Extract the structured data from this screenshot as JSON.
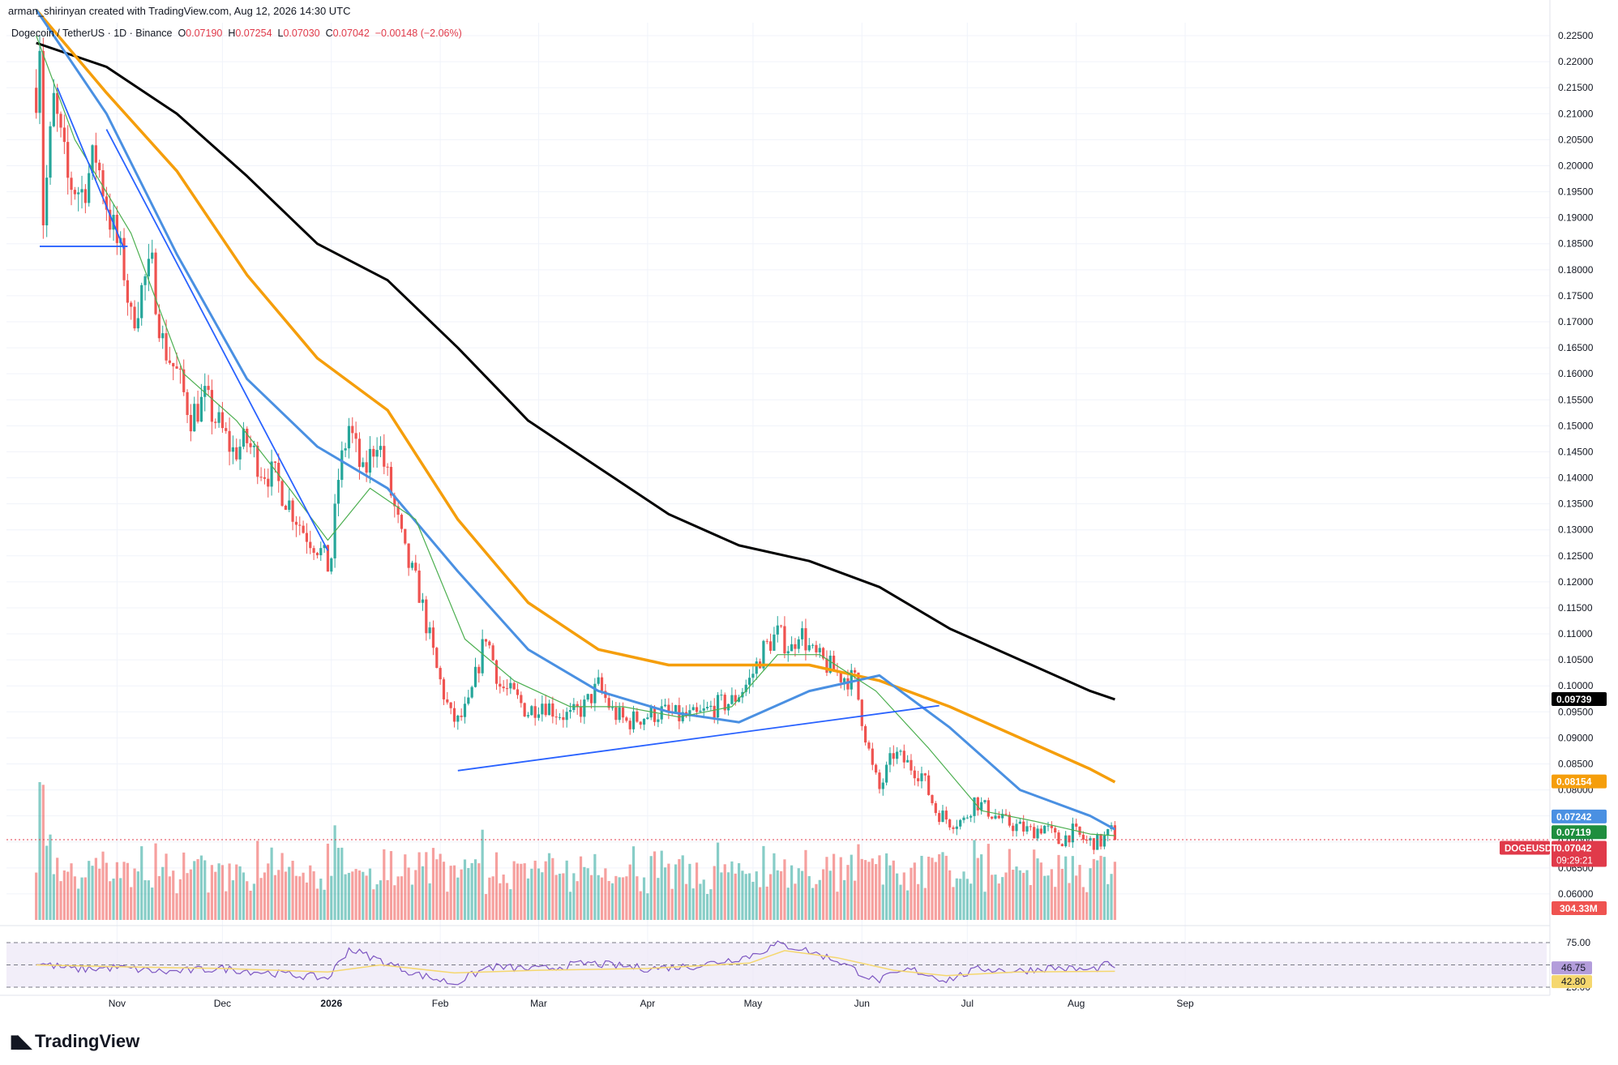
{
  "header": {
    "published": "arman_shirinyan created with TradingView.com, Aug 12, 2026 14:30 UTC",
    "symbol": "Dogecoin / TetherUS · 1D · Binance",
    "ohlc": {
      "o_label": "O",
      "o": "0.07190",
      "h_label": "H",
      "h": "0.07254",
      "l_label": "L",
      "l": "0.07030",
      "c_label": "C",
      "c": "0.07042",
      "change": "−0.00148 (−2.06%)"
    }
  },
  "brand": {
    "name": "TradingView"
  },
  "colors": {
    "up": "#26a69a",
    "down": "#ef5350",
    "ma_fast": "#4caf50",
    "ma_mid": "#4a90e2",
    "ma_slow": "#f59e0b",
    "ma_long": "#000000",
    "trend": "#2962ff",
    "rsi": "#7e57c2",
    "rsi_ma": "#f5d76e"
  },
  "chart_data": {
    "type": "candlestick",
    "ylim": [
      0.055,
      0.2275
    ],
    "y_ticks": [
      "0.22500",
      "0.22000",
      "0.21500",
      "0.21000",
      "0.20500",
      "0.20000",
      "0.19500",
      "0.19000",
      "0.18500",
      "0.18000",
      "0.17500",
      "0.17000",
      "0.16500",
      "0.16000",
      "0.15500",
      "0.15000",
      "0.14500",
      "0.14000",
      "0.13500",
      "0.13000",
      "0.12500",
      "0.12000",
      "0.11500",
      "0.11000",
      "0.10500",
      "0.10000",
      "0.09500",
      "0.09000",
      "0.08500",
      "0.08000",
      "0.07500",
      "0.07000",
      "0.06500",
      "0.06000"
    ],
    "x_ticks": [
      "Nov",
      "Dec",
      "2026",
      "Feb",
      "Mar",
      "Apr",
      "May",
      "Jun",
      "Jul",
      "Aug",
      "Sep"
    ],
    "price_path": [
      [
        "2025-10-09",
        0.215
      ],
      [
        "2025-10-10",
        0.225
      ],
      [
        "2025-10-11",
        0.19
      ],
      [
        "2025-10-14",
        0.212
      ],
      [
        "2025-10-18",
        0.197
      ],
      [
        "2025-10-22",
        0.195
      ],
      [
        "2025-10-26",
        0.202
      ],
      [
        "2025-10-30",
        0.19
      ],
      [
        "2025-11-03",
        0.18
      ],
      [
        "2025-11-05",
        0.17
      ],
      [
        "2025-11-09",
        0.178
      ],
      [
        "2025-11-11",
        0.18
      ],
      [
        "2025-11-14",
        0.166
      ],
      [
        "2025-11-18",
        0.16
      ],
      [
        "2025-11-22",
        0.152
      ],
      [
        "2025-11-26",
        0.155
      ],
      [
        "2025-11-30",
        0.15
      ],
      [
        "2025-12-04",
        0.145
      ],
      [
        "2025-12-08",
        0.147
      ],
      [
        "2025-12-12",
        0.142
      ],
      [
        "2025-12-16",
        0.14
      ],
      [
        "2025-12-20",
        0.135
      ],
      [
        "2025-12-24",
        0.13
      ],
      [
        "2025-12-28",
        0.127
      ],
      [
        "2025-12-31",
        0.123
      ],
      [
        "2026-01-01",
        0.125
      ],
      [
        "2026-01-03",
        0.14
      ],
      [
        "2026-01-06",
        0.15
      ],
      [
        "2026-01-10",
        0.14
      ],
      [
        "2026-01-14",
        0.148
      ],
      [
        "2026-01-18",
        0.137
      ],
      [
        "2026-01-22",
        0.125
      ],
      [
        "2026-01-26",
        0.118
      ],
      [
        "2026-01-31",
        0.103
      ],
      [
        "2026-02-04",
        0.094
      ],
      [
        "2026-02-06",
        0.093
      ],
      [
        "2026-02-09",
        0.096
      ],
      [
        "2026-02-14",
        0.11
      ],
      [
        "2026-02-18",
        0.1
      ],
      [
        "2026-02-22",
        0.098
      ],
      [
        "2026-02-26",
        0.095
      ],
      [
        "2026-03-02",
        0.097
      ],
      [
        "2026-03-06",
        0.095
      ],
      [
        "2026-03-10",
        0.094
      ],
      [
        "2026-03-14",
        0.096
      ],
      [
        "2026-03-18",
        0.1
      ],
      [
        "2026-03-22",
        0.095
      ],
      [
        "2026-03-26",
        0.093
      ],
      [
        "2026-03-30",
        0.094
      ],
      [
        "2026-04-05",
        0.095
      ],
      [
        "2026-04-10",
        0.094
      ],
      [
        "2026-04-15",
        0.094
      ],
      [
        "2026-04-20",
        0.096
      ],
      [
        "2026-04-25",
        0.097
      ],
      [
        "2026-04-30",
        0.101
      ],
      [
        "2026-05-04",
        0.107
      ],
      [
        "2026-05-08",
        0.11
      ],
      [
        "2026-05-12",
        0.107
      ],
      [
        "2026-05-14",
        0.111
      ],
      [
        "2026-05-18",
        0.106
      ],
      [
        "2026-05-22",
        0.104
      ],
      [
        "2026-05-26",
        0.102
      ],
      [
        "2026-05-30",
        0.101
      ],
      [
        "2026-06-01",
        0.094
      ],
      [
        "2026-06-04",
        0.084
      ],
      [
        "2026-06-06",
        0.08
      ],
      [
        "2026-06-10",
        0.087
      ],
      [
        "2026-06-14",
        0.085
      ],
      [
        "2026-06-18",
        0.083
      ],
      [
        "2026-06-22",
        0.076
      ],
      [
        "2026-06-26",
        0.074
      ],
      [
        "2026-06-30",
        0.074
      ],
      [
        "2026-07-03",
        0.078
      ],
      [
        "2026-07-07",
        0.076
      ],
      [
        "2026-07-11",
        0.074
      ],
      [
        "2026-07-15",
        0.073
      ],
      [
        "2026-07-19",
        0.072
      ],
      [
        "2026-07-23",
        0.073
      ],
      [
        "2026-07-27",
        0.07
      ],
      [
        "2026-07-31",
        0.072
      ],
      [
        "2026-08-04",
        0.07
      ],
      [
        "2026-08-08",
        0.07
      ],
      [
        "2026-08-11",
        0.072
      ],
      [
        "2026-08-12",
        0.0704
      ]
    ],
    "ma_long_path": [
      [
        "2025-10-09",
        0.2236
      ],
      [
        "2025-10-29",
        0.219
      ],
      [
        "2025-11-18",
        0.21
      ],
      [
        "2025-12-08",
        0.198
      ],
      [
        "2025-12-28",
        0.185
      ],
      [
        "2026-01-17",
        0.178
      ],
      [
        "2026-02-06",
        0.165
      ],
      [
        "2026-02-26",
        0.151
      ],
      [
        "2026-03-18",
        0.142
      ],
      [
        "2026-04-07",
        0.133
      ],
      [
        "2026-04-27",
        0.127
      ],
      [
        "2026-05-17",
        0.124
      ],
      [
        "2026-06-06",
        0.119
      ],
      [
        "2026-06-26",
        0.111
      ],
      [
        "2026-07-16",
        0.105
      ],
      [
        "2026-08-05",
        0.099
      ],
      [
        "2026-08-12",
        0.0974
      ]
    ],
    "ma_slow_path": [
      [
        "2025-10-09",
        0.23
      ],
      [
        "2025-10-29",
        0.214
      ],
      [
        "2025-11-18",
        0.199
      ],
      [
        "2025-12-08",
        0.179
      ],
      [
        "2025-12-28",
        0.163
      ],
      [
        "2026-01-17",
        0.153
      ],
      [
        "2026-02-06",
        0.132
      ],
      [
        "2026-02-26",
        0.116
      ],
      [
        "2026-03-18",
        0.107
      ],
      [
        "2026-04-07",
        0.104
      ],
      [
        "2026-04-27",
        0.104
      ],
      [
        "2026-05-17",
        0.104
      ],
      [
        "2026-06-06",
        0.101
      ],
      [
        "2026-06-26",
        0.096
      ],
      [
        "2026-07-16",
        0.09
      ],
      [
        "2026-08-05",
        0.084
      ],
      [
        "2026-08-12",
        0.0815
      ]
    ],
    "ma_mid_path": [
      [
        "2025-10-09",
        0.23
      ],
      [
        "2025-10-29",
        0.21
      ],
      [
        "2025-11-18",
        0.183
      ],
      [
        "2025-12-08",
        0.159
      ],
      [
        "2025-12-28",
        0.146
      ],
      [
        "2026-01-17",
        0.138
      ],
      [
        "2026-02-06",
        0.122
      ],
      [
        "2026-02-26",
        0.107
      ],
      [
        "2026-03-18",
        0.099
      ],
      [
        "2026-04-07",
        0.095
      ],
      [
        "2026-04-27",
        0.093
      ],
      [
        "2026-05-17",
        0.099
      ],
      [
        "2026-06-06",
        0.102
      ],
      [
        "2026-06-26",
        0.092
      ],
      [
        "2026-07-16",
        0.08
      ],
      [
        "2026-08-05",
        0.075
      ],
      [
        "2026-08-12",
        0.0724
      ]
    ],
    "ma_fast_path": [
      [
        "2025-10-09",
        0.225
      ],
      [
        "2025-10-20",
        0.205
      ],
      [
        "2025-11-05",
        0.187
      ],
      [
        "2025-11-20",
        0.16
      ],
      [
        "2025-12-05",
        0.151
      ],
      [
        "2025-12-20",
        0.138
      ],
      [
        "2025-12-31",
        0.128
      ],
      [
        "2026-01-12",
        0.138
      ],
      [
        "2026-01-25",
        0.132
      ],
      [
        "2026-02-08",
        0.109
      ],
      [
        "2026-02-22",
        0.101
      ],
      [
        "2026-03-10",
        0.096
      ],
      [
        "2026-03-25",
        0.096
      ],
      [
        "2026-04-10",
        0.094
      ],
      [
        "2026-04-25",
        0.096
      ],
      [
        "2026-05-08",
        0.106
      ],
      [
        "2026-05-20",
        0.106
      ],
      [
        "2026-06-05",
        0.099
      ],
      [
        "2026-06-20",
        0.088
      ],
      [
        "2026-07-05",
        0.076
      ],
      [
        "2026-07-20",
        0.074
      ],
      [
        "2026-08-05",
        0.0715
      ],
      [
        "2026-08-12",
        0.0712
      ]
    ],
    "trendlines": [
      {
        "from": [
          "2025-10-15",
          0.215
        ],
        "to": [
          "2025-11-03",
          0.184
        ]
      },
      {
        "from": [
          "2025-10-29",
          0.207
        ],
        "to": [
          "2025-12-31",
          0.126
        ]
      },
      {
        "from": [
          "2025-10-10",
          0.1845
        ],
        "to": [
          "2025-11-04",
          0.1845
        ]
      },
      {
        "from": [
          "2026-02-06",
          0.0837
        ],
        "to": [
          "2026-06-23",
          0.0962
        ]
      }
    ],
    "price_labels": [
      {
        "value": "0.09739",
        "y": 0.09739,
        "color": "#000000"
      },
      {
        "value": "0.08154",
        "y": 0.08154,
        "color": "#f59e0b"
      },
      {
        "value": "0.07242",
        "y": 0.0748,
        "color": "#4a90e2"
      },
      {
        "value": "0.07119",
        "y": 0.0718,
        "color": "#1e8e3e"
      },
      {
        "value": "0.07042",
        "y": 0.0688,
        "color": "#e03a4a",
        "tag": "DOGEUSDT",
        "countdown": "09:29:21"
      }
    ],
    "volume": {
      "last_label": "304.33M"
    },
    "rsi": {
      "ylim": [
        25,
        85
      ],
      "levels": [
        75.0,
        50.0,
        25.0
      ],
      "level_labels": [
        "75.00",
        "25.00"
      ],
      "value": 46.75,
      "value_label": "46.75",
      "ma_value": 42.8,
      "ma_label": "42.80",
      "rsi_path": [
        [
          "2025-10-09",
          52
        ],
        [
          "2025-10-20",
          45
        ],
        [
          "2025-11-01",
          47
        ],
        [
          "2025-11-15",
          42
        ],
        [
          "2025-12-01",
          46
        ],
        [
          "2025-12-15",
          41
        ],
        [
          "2025-12-31",
          35
        ],
        [
          "2026-01-06",
          68
        ],
        [
          "2026-01-15",
          55
        ],
        [
          "2026-01-25",
          40
        ],
        [
          "2026-02-05",
          29
        ],
        [
          "2026-02-15",
          48
        ],
        [
          "2026-03-01",
          45
        ],
        [
          "2026-03-15",
          52
        ],
        [
          "2026-04-01",
          46
        ],
        [
          "2026-04-15",
          49
        ],
        [
          "2026-04-30",
          60
        ],
        [
          "2026-05-08",
          73
        ],
        [
          "2026-05-14",
          69
        ],
        [
          "2026-05-25",
          55
        ],
        [
          "2026-06-05",
          32
        ],
        [
          "2026-06-15",
          45
        ],
        [
          "2026-06-25",
          33
        ],
        [
          "2026-07-05",
          46
        ],
        [
          "2026-07-15",
          43
        ],
        [
          "2026-07-25",
          47
        ],
        [
          "2026-08-05",
          44
        ],
        [
          "2026-08-11",
          52
        ],
        [
          "2026-08-12",
          46.75
        ]
      ],
      "rsi_ma_path": [
        [
          "2025-10-09",
          50
        ],
        [
          "2025-11-01",
          48
        ],
        [
          "2025-12-01",
          46
        ],
        [
          "2025-12-31",
          42
        ],
        [
          "2026-01-15",
          50
        ],
        [
          "2026-02-05",
          41
        ],
        [
          "2026-03-01",
          44
        ],
        [
          "2026-04-01",
          46
        ],
        [
          "2026-04-30",
          52
        ],
        [
          "2026-05-10",
          66
        ],
        [
          "2026-05-25",
          58
        ],
        [
          "2026-06-10",
          44
        ],
        [
          "2026-06-25",
          38
        ],
        [
          "2026-07-15",
          42
        ],
        [
          "2026-08-12",
          42.8
        ]
      ]
    }
  }
}
